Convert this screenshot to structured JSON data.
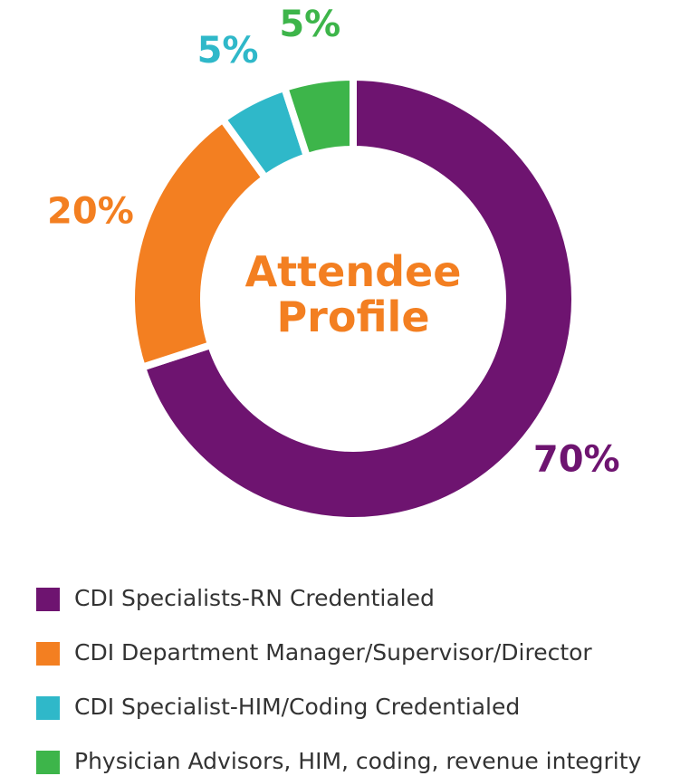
{
  "chart_data": {
    "type": "donut",
    "title": "Attendee Profile",
    "categories": [
      "CDI Specialists-RN Credentialed",
      "CDI Department Manager/Supervisor/Director",
      "CDI Specialist-HIM/Coding Credentialed",
      "Physician Advisors, HIM, coding, revenue integrity"
    ],
    "values": [
      70,
      20,
      5,
      5
    ],
    "value_labels": [
      "70%",
      "20%",
      "5%",
      "5%"
    ],
    "colors": [
      "#6e1470",
      "#f37f21",
      "#2fb8c9",
      "#3db54a"
    ],
    "legend": "bottom"
  }
}
